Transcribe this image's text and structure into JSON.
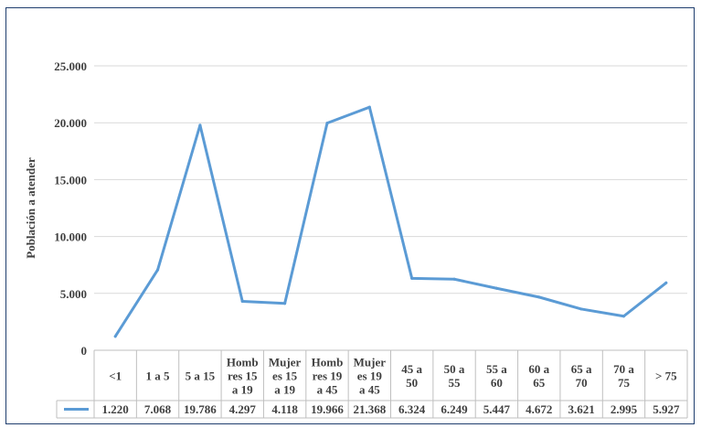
{
  "chart_data": {
    "type": "line",
    "ylabel": "Población a atender",
    "ylim": [
      0,
      25000
    ],
    "yticks": [
      "0",
      "5.000",
      "10.000",
      "15.000",
      "20.000",
      "25.000"
    ],
    "ytick_values": [
      0,
      5000,
      10000,
      15000,
      20000,
      25000
    ],
    "grid": true,
    "legend": "data-table",
    "categories": [
      [
        "<1"
      ],
      [
        "1 a 5"
      ],
      [
        "5 a 15"
      ],
      [
        "Homb",
        "res 15",
        "a 19"
      ],
      [
        "Mujer",
        "es 15",
        "a 19"
      ],
      [
        "Homb",
        "res 19",
        "a 45"
      ],
      [
        "Mujer",
        "es 19",
        "a 45"
      ],
      [
        "45 a",
        "50"
      ],
      [
        "50 a",
        "55"
      ],
      [
        "55 a",
        "60"
      ],
      [
        "60 a",
        "65"
      ],
      [
        "65 a",
        "70"
      ],
      [
        "70 a",
        "75"
      ],
      [
        "> 75"
      ]
    ],
    "series": [
      {
        "values": [
          1220,
          7068,
          19786,
          4297,
          4118,
          19966,
          21368,
          6324,
          6249,
          5447,
          4672,
          3621,
          2995,
          5927
        ],
        "labels": [
          "1.220",
          "7.068",
          "19.786",
          "4.297",
          "4.118",
          "19.966",
          "21.368",
          "6.324",
          "6.249",
          "5.447",
          "4.672",
          "3.621",
          "2.995",
          "5.927"
        ],
        "color": "#5b9bd5"
      }
    ]
  },
  "colors": {
    "line": "#5b9bd5",
    "grid": "#d9d9d9",
    "table_border": "#bfbfbf",
    "frame": "#1f3e6e"
  }
}
